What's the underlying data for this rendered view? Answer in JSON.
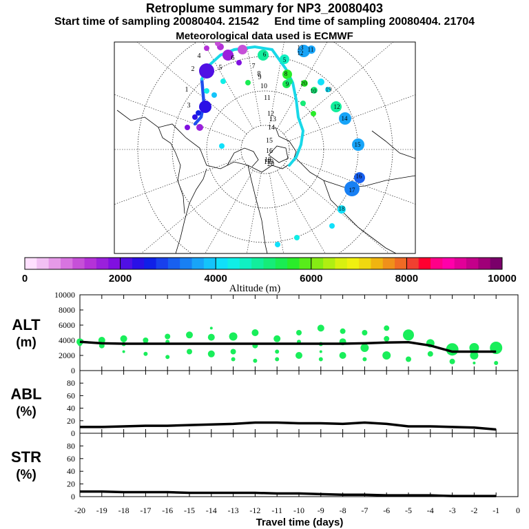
{
  "header": {
    "title": "Retroplume summary for NP3_20080403",
    "start_label": "Start time of sampling 20080404. 21542",
    "end_label": "End time of sampling 20080404. 21704",
    "met_label": "Meteorological data used is ECMWF"
  },
  "colorbar": {
    "ticks": [
      "0",
      "2000",
      "4000",
      "6000",
      "8000",
      "10000"
    ],
    "label": "Altitude (m)",
    "colors": [
      "#ffe0ff",
      "#f2c0f4",
      "#e69ae8",
      "#d874e0",
      "#c650d8",
      "#b432d8",
      "#9a20dc",
      "#8010e0",
      "#5010e4",
      "#2a10e6",
      "#1020e8",
      "#1840ec",
      "#1860f0",
      "#1880f4",
      "#18a4f8",
      "#14c4fa",
      "#10e0fa",
      "#10eee6",
      "#10f0c2",
      "#12ee9c",
      "#16ec78",
      "#1aec52",
      "#2aec2a",
      "#58ec1a",
      "#86ec14",
      "#b0ee12",
      "#d8f010",
      "#f0f010",
      "#f0d810",
      "#f0b410",
      "#f0901a",
      "#f06a24",
      "#f04030",
      "#ff0030",
      "#ff0088",
      "#ff00aa",
      "#e20098",
      "#c4008a",
      "#a00078",
      "#7a006a"
    ]
  },
  "map": {
    "latitude_labels": [
      "1",
      "2",
      "3",
      "4",
      "5",
      "6",
      "7",
      "8",
      "9",
      "10",
      "11",
      "12",
      "13",
      "14",
      "15",
      "16",
      "17",
      "18",
      "19",
      "20"
    ],
    "plume_labels": [
      "11",
      "12",
      "13",
      "5",
      "6",
      "8",
      "9",
      "10",
      "12",
      "14",
      "15",
      "16",
      "17",
      "18",
      "19",
      "20"
    ]
  },
  "chart_data": [
    {
      "type": "line",
      "panel": "ALT",
      "ylabel": "ALT\n(m)",
      "ylabel_line1": "ALT",
      "ylabel_line2": "(m)",
      "xlabel": "Travel time (days)",
      "ylim": [
        0,
        10000
      ],
      "yticks": [
        "0",
        "2000",
        "4000",
        "6000",
        "8000",
        "10000"
      ],
      "xlim": [
        -20,
        0
      ],
      "xticks": [
        "-20",
        "-19",
        "-18",
        "-17",
        "-16",
        "-15",
        "-14",
        "-13",
        "-12",
        "-11",
        "-10",
        "-9",
        "-8",
        "-7",
        "-6",
        "-5",
        "-4",
        "-3",
        "-2",
        "-1",
        "0"
      ],
      "mean_line": {
        "x": [
          -20,
          -19,
          -18,
          -17,
          -16,
          -15,
          -14,
          -13,
          -12,
          -11,
          -10,
          -9,
          -8,
          -7,
          -6,
          -5,
          -4,
          -3,
          -2,
          -1
        ],
        "y": [
          3800,
          3600,
          3550,
          3550,
          3550,
          3550,
          3550,
          3550,
          3550,
          3550,
          3550,
          3550,
          3550,
          3600,
          3700,
          3750,
          3300,
          2500,
          2500,
          2500
        ]
      },
      "clusters": [
        {
          "x": -20,
          "y": 3800,
          "r": 5
        },
        {
          "x": -20,
          "y": 3500,
          "r": 3
        },
        {
          "x": -19,
          "y": 4000,
          "r": 5
        },
        {
          "x": -19,
          "y": 3300,
          "r": 4
        },
        {
          "x": -18,
          "y": 4200,
          "r": 5
        },
        {
          "x": -18,
          "y": 3500,
          "r": 3
        },
        {
          "x": -18,
          "y": 2500,
          "r": 2
        },
        {
          "x": -17,
          "y": 4000,
          "r": 4
        },
        {
          "x": -17,
          "y": 3700,
          "r": 3
        },
        {
          "x": -17,
          "y": 2200,
          "r": 3
        },
        {
          "x": -16,
          "y": 4500,
          "r": 4
        },
        {
          "x": -16,
          "y": 3800,
          "r": 3
        },
        {
          "x": -16,
          "y": 1800,
          "r": 3
        },
        {
          "x": -15,
          "y": 4700,
          "r": 5
        },
        {
          "x": -15,
          "y": 2500,
          "r": 4
        },
        {
          "x": -14,
          "y": 4400,
          "r": 5
        },
        {
          "x": -14,
          "y": 2200,
          "r": 5
        },
        {
          "x": -14,
          "y": 5600,
          "r": 2
        },
        {
          "x": -13,
          "y": 4500,
          "r": 6
        },
        {
          "x": -13,
          "y": 2500,
          "r": 4
        },
        {
          "x": -13,
          "y": 1500,
          "r": 3
        },
        {
          "x": -12,
          "y": 5000,
          "r": 5
        },
        {
          "x": -12,
          "y": 3300,
          "r": 4
        },
        {
          "x": -12,
          "y": 1300,
          "r": 3
        },
        {
          "x": -11,
          "y": 4200,
          "r": 5
        },
        {
          "x": -11,
          "y": 2500,
          "r": 3
        },
        {
          "x": -11,
          "y": 1500,
          "r": 3
        },
        {
          "x": -10,
          "y": 5000,
          "r": 4
        },
        {
          "x": -10,
          "y": 3800,
          "r": 3
        },
        {
          "x": -10,
          "y": 2000,
          "r": 5
        },
        {
          "x": -9,
          "y": 5600,
          "r": 5
        },
        {
          "x": -9,
          "y": 3500,
          "r": 3
        },
        {
          "x": -9,
          "y": 2500,
          "r": 2
        },
        {
          "x": -9,
          "y": 1500,
          "r": 3
        },
        {
          "x": -8,
          "y": 5200,
          "r": 4
        },
        {
          "x": -8,
          "y": 3800,
          "r": 5
        },
        {
          "x": -8,
          "y": 2000,
          "r": 5
        },
        {
          "x": -7,
          "y": 5000,
          "r": 4
        },
        {
          "x": -7,
          "y": 3000,
          "r": 6
        },
        {
          "x": -7,
          "y": 1500,
          "r": 3
        },
        {
          "x": -6,
          "y": 5600,
          "r": 4
        },
        {
          "x": -6,
          "y": 4200,
          "r": 4
        },
        {
          "x": -6,
          "y": 2000,
          "r": 6
        },
        {
          "x": -5,
          "y": 4700,
          "r": 8
        },
        {
          "x": -5,
          "y": 1500,
          "r": 4
        },
        {
          "x": -4,
          "y": 3600,
          "r": 6
        },
        {
          "x": -4,
          "y": 2200,
          "r": 4
        },
        {
          "x": -3,
          "y": 2800,
          "r": 9
        },
        {
          "x": -3,
          "y": 1200,
          "r": 4
        },
        {
          "x": -2,
          "y": 3000,
          "r": 7
        },
        {
          "x": -2,
          "y": 2000,
          "r": 6
        },
        {
          "x": -2,
          "y": 1000,
          "r": 2
        },
        {
          "x": -1,
          "y": 3000,
          "r": 9
        },
        {
          "x": -1,
          "y": 1000,
          "r": 3
        }
      ]
    },
    {
      "type": "line",
      "panel": "ABL",
      "ylabel": "ABL\n(%)",
      "ylabel_line1": "ABL",
      "ylabel_line2": "(%)",
      "ylim": [
        0,
        100
      ],
      "yticks": [
        "0",
        "20",
        "40",
        "60",
        "80"
      ],
      "xlim": [
        -20,
        0
      ],
      "series": [
        {
          "name": "ABL",
          "x": [
            -20,
            -19,
            -18,
            -17,
            -16,
            -15,
            -14,
            -13,
            -12,
            -11,
            -10,
            -9,
            -8,
            -7,
            -6,
            -5,
            -4,
            -3,
            -2,
            -1
          ],
          "values": [
            10,
            10,
            11,
            12,
            12,
            13,
            14,
            15,
            17,
            17,
            16,
            16,
            15,
            17,
            15,
            11,
            11,
            10,
            9,
            6
          ]
        }
      ]
    },
    {
      "type": "line",
      "panel": "STR",
      "ylabel": "STR\n(%)",
      "ylabel_line1": "STR",
      "ylabel_line2": "(%)",
      "ylim": [
        0,
        100
      ],
      "yticks": [
        "0",
        "20",
        "40",
        "60",
        "80"
      ],
      "xlim": [
        -20,
        0
      ],
      "xlabel": "Travel time (days)",
      "series": [
        {
          "name": "STR",
          "x": [
            -20,
            -19,
            -18,
            -17,
            -16,
            -15,
            -14,
            -13,
            -12,
            -11,
            -10,
            -9,
            -8,
            -7,
            -6,
            -5,
            -4,
            -3,
            -2,
            -1
          ],
          "values": [
            8,
            8,
            7,
            7,
            7,
            6,
            6,
            6,
            6,
            5,
            5,
            4,
            3,
            3,
            2,
            2,
            2,
            1,
            1,
            1
          ]
        }
      ]
    }
  ]
}
